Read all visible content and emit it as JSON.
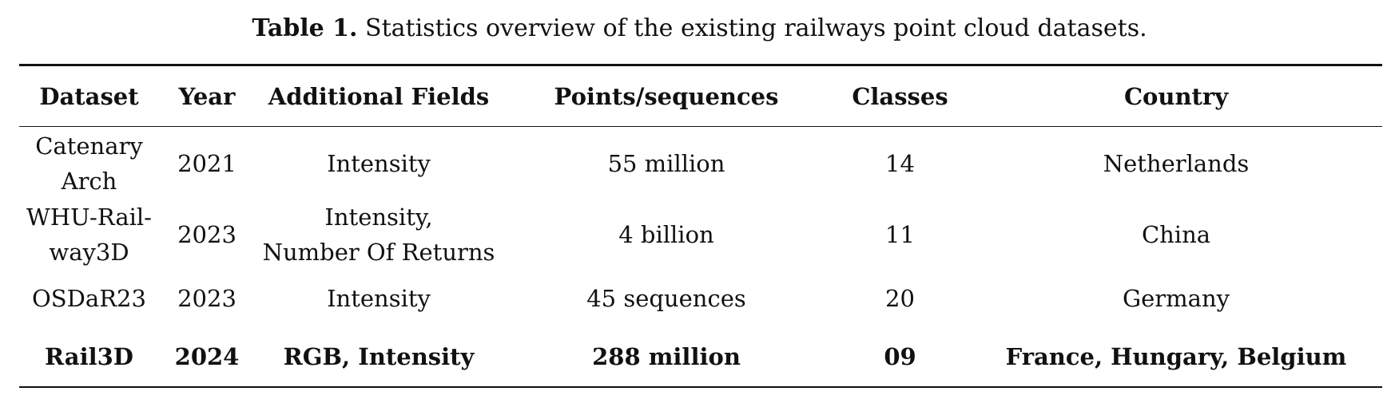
{
  "caption": {
    "label": "Table 1.",
    "text": "Statistics overview of the existing railways point cloud datasets."
  },
  "table": {
    "headers": [
      "Dataset",
      "Year",
      "Additional Fields",
      "Points/sequences",
      "Classes",
      "Country"
    ],
    "rows": [
      {
        "dataset_line1": "Catenary",
        "dataset_line2": "Arch",
        "year": "2021",
        "fields_line1": "Intensity",
        "fields_line2": "",
        "points": "55 million",
        "classes": "14",
        "country": "Netherlands"
      },
      {
        "dataset_line1": "WHU-Rail-",
        "dataset_line2": "way3D",
        "year": "2023",
        "fields_line1": "Intensity,",
        "fields_line2": "Number Of Returns",
        "points": "4 billion",
        "classes": "11",
        "country": "China"
      },
      {
        "dataset_line1": "OSDaR23",
        "dataset_line2": "",
        "year": "2023",
        "fields_line1": "Intensity",
        "fields_line2": "",
        "points": "45 sequences",
        "classes": "20",
        "country": "Germany"
      },
      {
        "dataset_line1": "Rail3D",
        "dataset_line2": "",
        "year": "2024",
        "fields_line1": "RGB, Intensity",
        "fields_line2": "",
        "points": "288 million",
        "classes": "09",
        "country": "France, Hungary, Belgium"
      }
    ]
  }
}
